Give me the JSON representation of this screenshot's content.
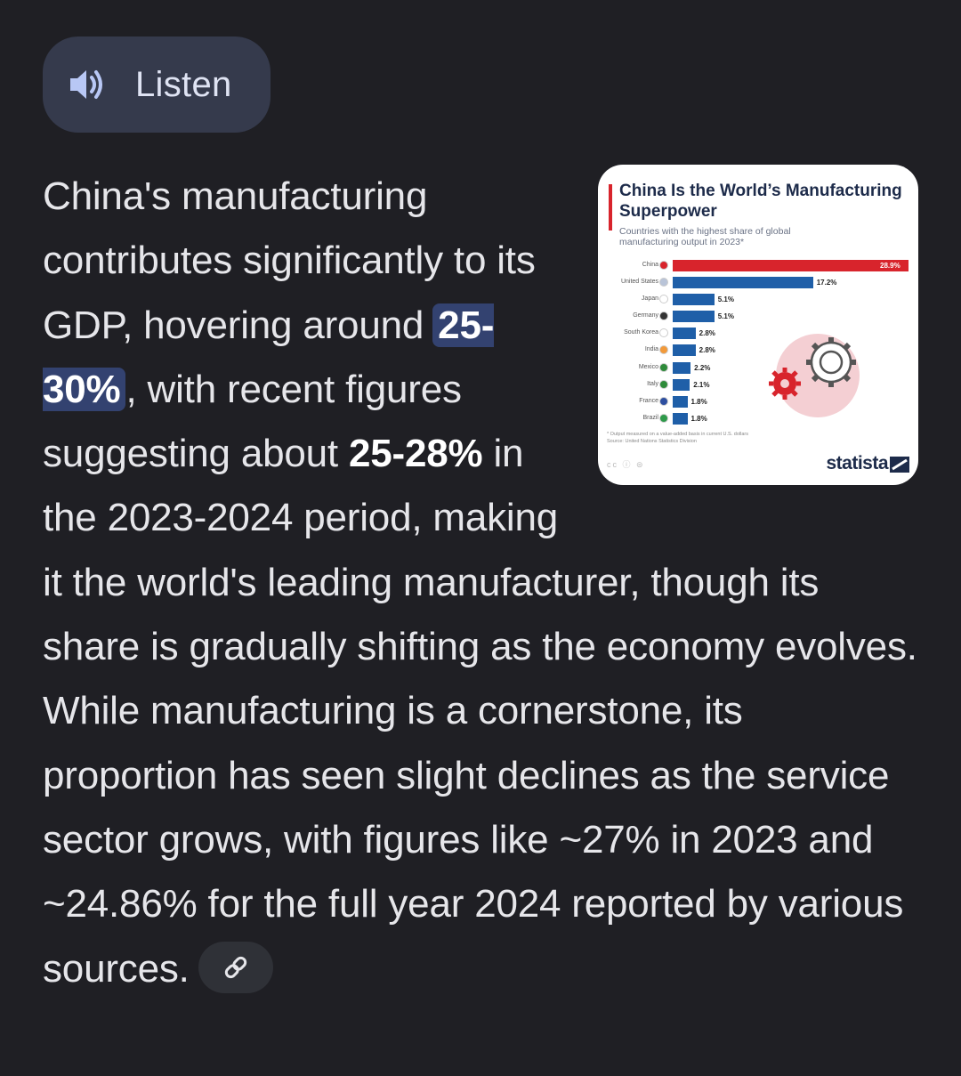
{
  "listen": {
    "label": "Listen",
    "icon": "speaker-icon"
  },
  "answer": {
    "part1": "China's manufacturing contributes significantly to its GDP, hovering around ",
    "highlight": "25-30%",
    "part2": ", with recent figures suggesting about ",
    "bold": "25-28%",
    "part3": " in the 2023-2024 period, making it the world's leading manufacturer, though its share is gradually shifting as the economy evolves. While manufacturing is a cornerstone, its proportion has seen slight declines as the service sector grows, with figures like ~27% in 2023 and ~24.86% for the full year 2024 reported by various sources.",
    "link_icon": "link-icon"
  },
  "thumbnail": {
    "title": "China Is the World’s Manufacturing Superpower",
    "subtitle": "Countries with the highest share of global manufacturing output in 2023*",
    "footnote": "* Output measured on a value-added basis in current U.S. dollars",
    "source": "Source: United Nations Statistics Division",
    "license": "cc ⓘ ⊜",
    "brand": "statista",
    "colors": {
      "china": "#d8242c",
      "others": "#1f5fa8",
      "accent": "#d8242c"
    },
    "chart_data": {
      "type": "bar",
      "orientation": "horizontal",
      "categories": [
        "China",
        "United States",
        "Japan",
        "Germany",
        "South Korea",
        "India",
        "Mexico",
        "Italy",
        "France",
        "Brazil"
      ],
      "values": [
        28.9,
        17.2,
        5.1,
        5.1,
        2.8,
        2.8,
        2.2,
        2.1,
        1.8,
        1.8
      ],
      "labels": [
        "28.9%",
        "17.2%",
        "5.1%",
        "5.1%",
        "2.8%",
        "2.8%",
        "2.2%",
        "2.1%",
        "1.8%",
        "1.8%"
      ],
      "flag_colors": [
        "#d8242c",
        "#b9c4d8",
        "#ffffff",
        "#333333",
        "#ffffff",
        "#f29a3a",
        "#2e8b3a",
        "#2e8b3a",
        "#2d4fa0",
        "#2e9a4a"
      ],
      "xlim": [
        0,
        28.9
      ],
      "title": "China Is the World’s Manufacturing Superpower"
    }
  }
}
